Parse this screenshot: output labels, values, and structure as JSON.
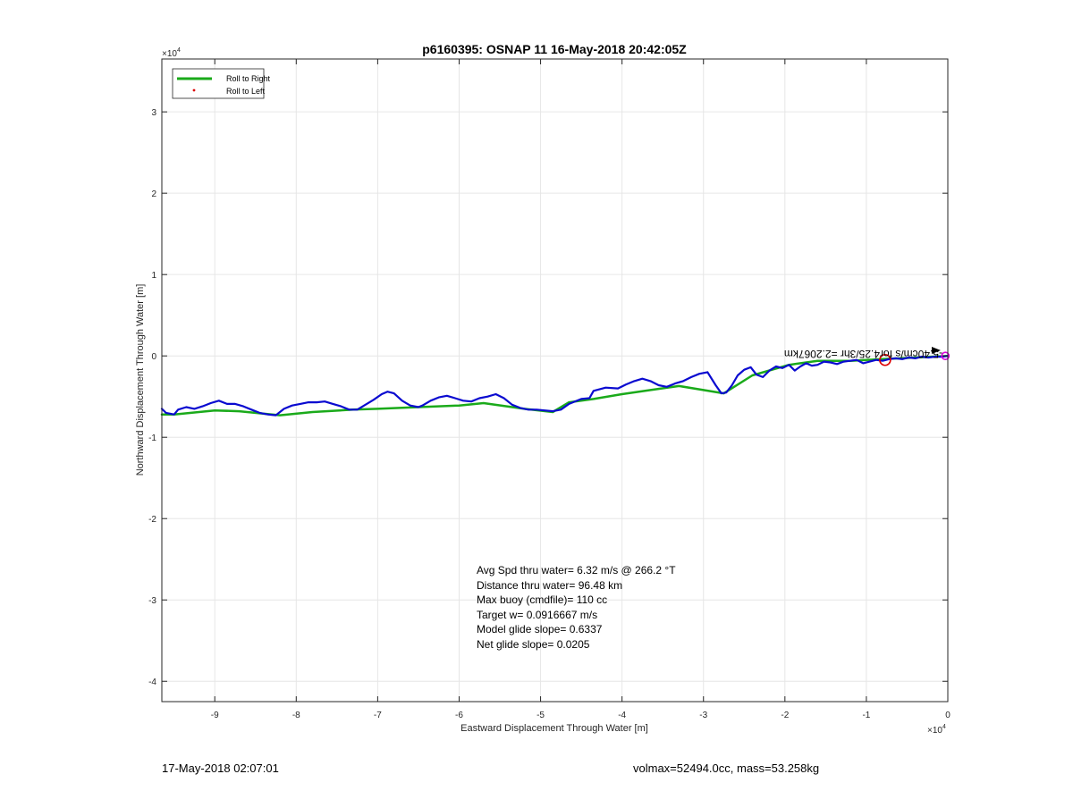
{
  "chart_data": {
    "type": "line",
    "title": "p6160395: OSNAP 11 16-May-2018 20:42:05Z",
    "xlabel": "Eastward Displacement Through Water [m]",
    "ylabel": "Northward Displacement Through Water [m]",
    "x_exponent_label": "×10",
    "x_exponent_power": "4",
    "y_exponent_label": "×10",
    "y_exponent_power": "4",
    "xlim": [
      -96500,
      0
    ],
    "ylim": [
      -42500,
      36500
    ],
    "grid": true,
    "x_ticks": [
      {
        "value": -90000,
        "label": "-9"
      },
      {
        "value": -80000,
        "label": "-8"
      },
      {
        "value": -70000,
        "label": "-7"
      },
      {
        "value": -60000,
        "label": "-6"
      },
      {
        "value": -50000,
        "label": "-5"
      },
      {
        "value": -40000,
        "label": "-4"
      },
      {
        "value": -30000,
        "label": "-3"
      },
      {
        "value": -20000,
        "label": "-2"
      },
      {
        "value": -10000,
        "label": "-1"
      },
      {
        "value": 0,
        "label": "0"
      }
    ],
    "y_ticks": [
      {
        "value": 30000,
        "label": "3"
      },
      {
        "value": 20000,
        "label": "2"
      },
      {
        "value": 10000,
        "label": "1"
      },
      {
        "value": 0,
        "label": "0"
      },
      {
        "value": -10000,
        "label": "-1"
      },
      {
        "value": -20000,
        "label": "-2"
      },
      {
        "value": -30000,
        "label": "-3"
      },
      {
        "value": -40000,
        "label": "-4"
      }
    ],
    "legend": {
      "placement": "top-left",
      "entries": [
        {
          "label": "Roll to Right",
          "color": "#1aaa1a",
          "marker": "line"
        },
        {
          "label": "Roll to Left",
          "color": "#dd0000",
          "marker": "dot"
        }
      ]
    },
    "series": [
      {
        "name": "Roll to Right",
        "color": "#1aaa1a",
        "x": [
          -96500,
          -95000,
          -90000,
          -87000,
          -82000,
          -78000,
          -73000,
          -70000,
          -65000,
          -60000,
          -57000,
          -52000,
          -48500,
          -46500,
          -43500,
          -40000,
          -36500,
          -33000,
          -30000,
          -27500,
          -24000,
          -19500,
          -16000,
          -12000,
          -8000,
          -4000,
          0
        ],
        "y": [
          -7200,
          -7200,
          -6700,
          -6800,
          -7300,
          -6900,
          -6600,
          -6500,
          -6300,
          -6100,
          -5800,
          -6500,
          -6900,
          -5700,
          -5300,
          -4700,
          -4200,
          -3700,
          -4200,
          -4600,
          -2400,
          -1100,
          -600,
          -600,
          -400,
          -200,
          0
        ]
      },
      {
        "name": "Track",
        "color": "#0a0ad0",
        "x": [
          -96500,
          -96000,
          -95000,
          -94500,
          -93500,
          -92500,
          -91500,
          -90500,
          -89500,
          -88500,
          -87500,
          -86500,
          -85500,
          -84500,
          -83500,
          -82500,
          -81500,
          -80500,
          -79500,
          -78500,
          -77500,
          -76500,
          -75500,
          -74500,
          -73500,
          -72500,
          -71500,
          -70500,
          -69500,
          -68800,
          -68000,
          -67000,
          -66000,
          -65000,
          -64500,
          -63500,
          -62500,
          -61500,
          -60500,
          -59500,
          -58500,
          -57500,
          -56500,
          -55500,
          -54500,
          -53500,
          -52500,
          -51500,
          -50500,
          -49500,
          -48500,
          -47500,
          -46500,
          -45000,
          -44000,
          -43500,
          -42000,
          -40500,
          -39500,
          -38500,
          -37500,
          -36500,
          -35500,
          -34500,
          -33500,
          -32500,
          -31500,
          -30500,
          -29500,
          -28500,
          -27800,
          -27200,
          -26500,
          -25800,
          -25000,
          -24200,
          -23500,
          -22700,
          -21900,
          -21100,
          -20300,
          -19500,
          -18800,
          -18100,
          -17400,
          -16700,
          -16000,
          -15200,
          -14400,
          -13600,
          -12800,
          -12000,
          -11200,
          -10400,
          -9600,
          -8800,
          -8000,
          -7200,
          -6400,
          -5600,
          -4800,
          -4000,
          -3200,
          -2400,
          -1600,
          -800,
          0
        ],
        "y": [
          -6500,
          -7000,
          -7200,
          -6600,
          -6300,
          -6500,
          -6200,
          -5800,
          -5500,
          -5900,
          -5900,
          -6200,
          -6600,
          -7000,
          -7200,
          -7300,
          -6500,
          -6100,
          -5900,
          -5700,
          -5700,
          -5600,
          -5900,
          -6200,
          -6600,
          -6600,
          -6000,
          -5400,
          -4700,
          -4400,
          -4600,
          -5500,
          -6100,
          -6300,
          -6100,
          -5500,
          -5100,
          -4900,
          -5200,
          -5500,
          -5600,
          -5200,
          -5000,
          -4700,
          -5200,
          -6000,
          -6400,
          -6600,
          -6600,
          -6700,
          -6800,
          -6600,
          -5900,
          -5300,
          -5200,
          -4300,
          -3900,
          -4000,
          -3500,
          -3100,
          -2800,
          -3100,
          -3600,
          -3800,
          -3400,
          -3100,
          -2600,
          -2200,
          -2000,
          -3600,
          -4600,
          -4500,
          -3600,
          -2400,
          -1700,
          -1400,
          -2300,
          -2600,
          -1800,
          -1300,
          -1500,
          -1100,
          -1800,
          -1300,
          -900,
          -1200,
          -1100,
          -700,
          -800,
          -1000,
          -700,
          -600,
          -500,
          -900,
          -700,
          -500,
          -600,
          -400,
          -300,
          -400,
          -200,
          -300,
          -100,
          -200,
          -100,
          -100,
          0
        ]
      }
    ],
    "markers": [
      {
        "label": "red circle",
        "x": -7700,
        "y": -500,
        "color": "#dd0000"
      },
      {
        "label": "end point",
        "x": -300,
        "y": 0,
        "color": "#dd00dd"
      }
    ],
    "annotations": {
      "rotated_label": "-5.40cm/s for4.25/3hr =2.2067km",
      "stats": [
        "Avg Spd thru water=  6.32 m/s @ 266.2 °T",
        "Distance thru water= 96.48 km",
        "Max buoy (cmdfile)= 110 cc",
        "Target w= 0.0916667 m/s",
        "Model glide slope= 0.6337",
        "Net glide slope= 0.0205"
      ]
    }
  },
  "footer": {
    "date": "17-May-2018 02:07:01",
    "info": "volmax=52494.0cc, mass=53.258kg"
  }
}
